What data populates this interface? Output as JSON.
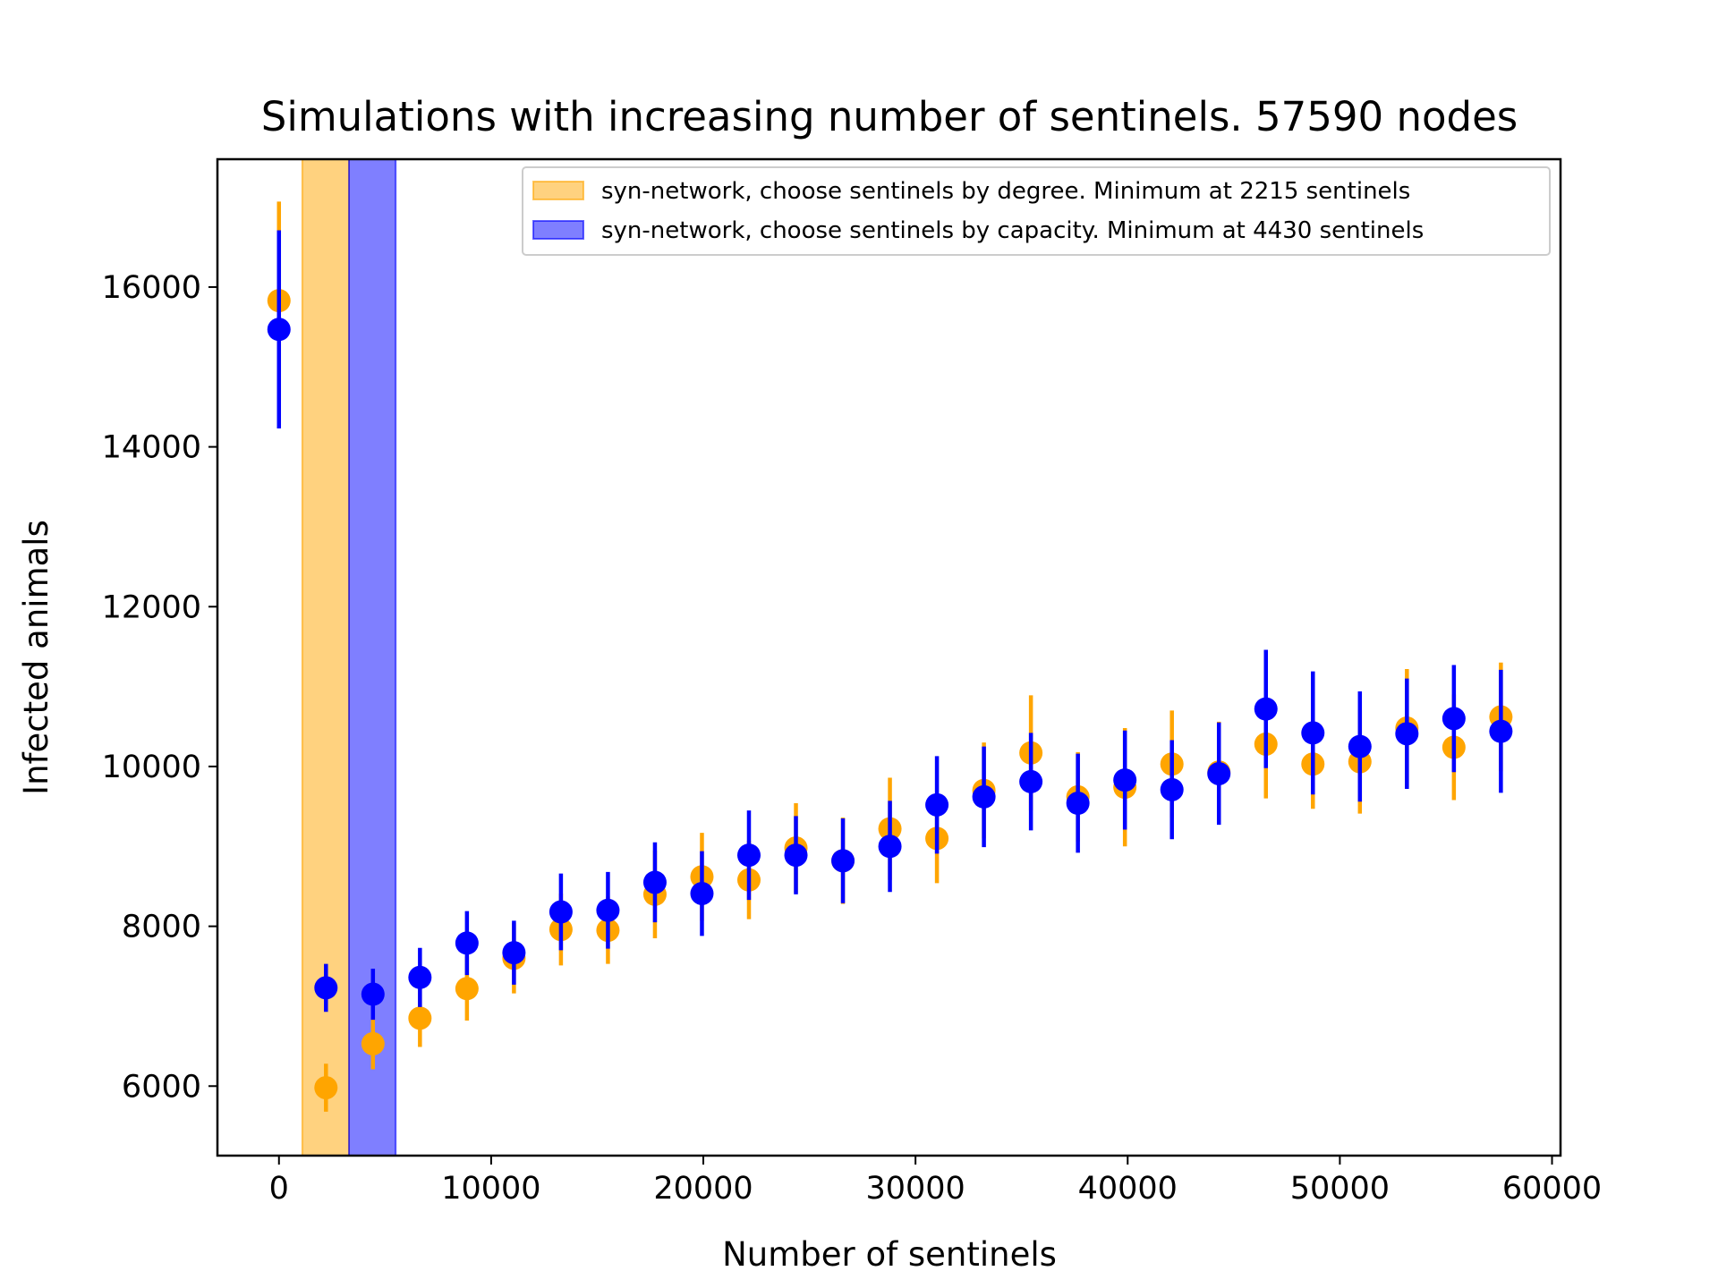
{
  "chart_data": {
    "type": "scatter",
    "title": "Simulations with increasing number of sentinels. 57590 nodes",
    "xlabel": "Number of sentinels",
    "ylabel": "Infected animals",
    "xlim": [
      -2900,
      60400
    ],
    "ylim": [
      5130,
      17600
    ],
    "xticks": [
      0,
      10000,
      20000,
      30000,
      40000,
      50000,
      60000
    ],
    "yticks": [
      6000,
      8000,
      10000,
      12000,
      14000,
      16000
    ],
    "grid": false,
    "legend_position": "top-right",
    "bands": [
      {
        "series": "degree",
        "x0": 1100,
        "x1": 3300,
        "color": "#ffa500",
        "opacity": 0.5
      },
      {
        "series": "capacity",
        "x0": 3300,
        "x1": 5500,
        "color": "#0000ff",
        "opacity": 0.5
      }
    ],
    "x": [
      0,
      2215,
      4430,
      6645,
      8860,
      11075,
      13290,
      15505,
      17720,
      19935,
      22150,
      24365,
      26580,
      28795,
      31010,
      33225,
      35440,
      37655,
      39870,
      42085,
      44300,
      46515,
      48730,
      50945,
      53160,
      55375,
      57590
    ],
    "series": [
      {
        "name": "syn-network, choose sentinels by degree. Minimum at 2215 sentinels",
        "key": "degree",
        "color": "#ffa500",
        "y": [
          15830,
          5980,
          6530,
          6850,
          7220,
          7600,
          7960,
          7950,
          8400,
          8620,
          8580,
          8980,
          8820,
          9220,
          9100,
          9700,
          10170,
          9620,
          9740,
          10030,
          9930,
          10280,
          10030,
          10060,
          10480,
          10240,
          10620
        ],
        "err": [
          1240,
          300,
          320,
          360,
          400,
          440,
          450,
          420,
          550,
          550,
          490,
          560,
          540,
          640,
          560,
          600,
          720,
          560,
          740,
          670,
          630,
          680,
          560,
          650,
          740,
          660,
          680
        ]
      },
      {
        "name": "syn-network, choose sentinels by capacity. Minimum at 4430 sentinels",
        "key": "capacity",
        "color": "#0000ff",
        "y": [
          15470,
          7230,
          7150,
          7360,
          7790,
          7670,
          8180,
          8200,
          8550,
          8410,
          8890,
          8890,
          8820,
          9000,
          9520,
          9620,
          9810,
          9540,
          9830,
          9710,
          9910,
          10720,
          10420,
          10250,
          10410,
          10600,
          10440
        ],
        "err": [
          1240,
          300,
          320,
          370,
          400,
          400,
          480,
          480,
          500,
          530,
          560,
          490,
          530,
          570,
          610,
          630,
          610,
          620,
          620,
          620,
          640,
          740,
          770,
          690,
          690,
          670,
          770
        ]
      }
    ]
  }
}
